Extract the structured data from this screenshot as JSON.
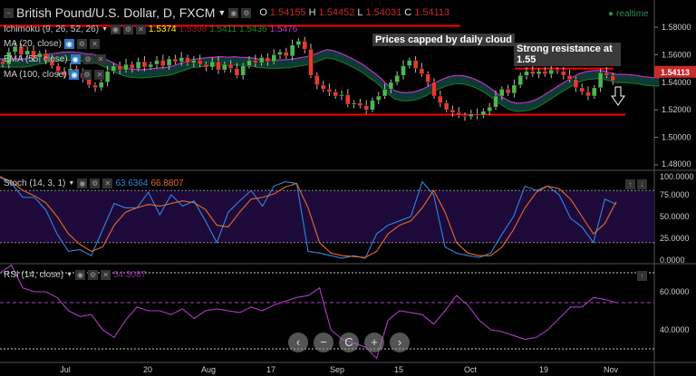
{
  "header": {
    "title": "British Pound/U.S. Dollar, D, FXCM",
    "o_label": "O",
    "o": "1.54155",
    "h_label": "H",
    "h": "1.54452",
    "l_label": "L",
    "l": "1.54031",
    "c_label": "C",
    "c": "1.54113",
    "realtime": "realtime"
  },
  "legend": {
    "ichimoku": "Ichimoku (9, 26, 52, 26)",
    "ichi_vals": [
      "1.5374",
      "1.5308",
      "1.5411",
      "1.5436",
      "1.5476"
    ],
    "ma20": "MA (20, close)",
    "ema55": "EMA (55, close)",
    "ma100": "MA (100, close)",
    "stoch": "Stoch (14, 3, 1)",
    "stoch_k": "63.6364",
    "stoch_d": "66.8807",
    "rsi": "RSI (14, close)",
    "rsi_val": "54.3087"
  },
  "annotations": {
    "cloud": "Prices capped by daily cloud",
    "resistance": "Strong resistance at 1.55"
  },
  "colors": {
    "up": "#4cb84c",
    "down": "#e8392b",
    "cloud": "#0d3b34",
    "stoch_k": "#2f86e0",
    "stoch_d": "#e8692b",
    "rsi": "#b03ac8",
    "level": "#ff0000"
  },
  "nav": [
    "‹",
    "−",
    "C",
    "+",
    "›"
  ],
  "chart_data": [
    {
      "type": "candlestick",
      "series": "GBP/USD daily",
      "x_ticks": [
        "Jul",
        "20",
        "Aug",
        "17",
        "Sep",
        "15",
        "Oct",
        "19",
        "Nov"
      ],
      "y_ticks": [
        "1.58000",
        "1.56000",
        "1.54000",
        "1.52000",
        "1.50000",
        "1.48000"
      ],
      "ylim": [
        1.475,
        1.585
      ],
      "last_price": "1.54113",
      "closes": [
        1.553,
        1.562,
        1.566,
        1.56,
        1.563,
        1.558,
        1.561,
        1.556,
        1.552,
        1.548,
        1.545,
        1.55,
        1.547,
        1.543,
        1.538,
        1.536,
        1.54,
        1.548,
        1.552,
        1.549,
        1.553,
        1.55,
        1.555,
        1.551,
        1.553,
        1.556,
        1.552,
        1.557,
        1.555,
        1.558,
        1.554,
        1.556,
        1.553,
        1.551,
        1.555,
        1.549,
        1.553,
        1.55,
        1.545,
        1.552,
        1.556,
        1.554,
        1.558,
        1.555,
        1.56,
        1.562,
        1.559,
        1.567,
        1.57,
        1.564,
        1.545,
        1.538,
        1.535,
        1.533,
        1.53,
        1.531,
        1.524,
        1.525,
        1.523,
        1.52,
        1.527,
        1.53,
        1.535,
        1.54,
        1.545,
        1.552,
        1.556,
        1.55,
        1.546,
        1.54,
        1.53,
        1.525,
        1.52,
        1.518,
        1.516,
        1.515,
        1.517,
        1.516,
        1.519,
        1.522,
        1.53,
        1.535,
        1.532,
        1.538,
        1.545,
        1.548,
        1.546,
        1.548,
        1.546,
        1.549,
        1.548,
        1.545,
        1.542,
        1.536,
        1.533,
        1.53,
        1.536,
        1.547,
        1.545,
        1.541
      ],
      "levels": [
        1.581,
        1.5165,
        1.55
      ]
    },
    {
      "type": "line",
      "series": [
        "%K",
        "%D"
      ],
      "ylim": [
        0,
        100
      ],
      "y_ticks": [
        "100.0000",
        "75.0000",
        "50.0000",
        "25.0000",
        "0.0000"
      ],
      "bands": [
        20,
        80
      ],
      "k": [
        95,
        88,
        72,
        72,
        58,
        30,
        10,
        12,
        5,
        35,
        65,
        60,
        60,
        78,
        52,
        75,
        62,
        68,
        45,
        20,
        55,
        68,
        80,
        62,
        85,
        90,
        88,
        10,
        8,
        5,
        2,
        5,
        2,
        30,
        40,
        45,
        50,
        90,
        75,
        15,
        8,
        5,
        3,
        8,
        30,
        50,
        85,
        80,
        85,
        75,
        48,
        38,
        20,
        70,
        64
      ],
      "d": [
        96,
        90,
        80,
        74,
        66,
        50,
        30,
        18,
        10,
        15,
        40,
        55,
        60,
        64,
        62,
        65,
        68,
        66,
        58,
        40,
        38,
        55,
        70,
        72,
        76,
        84,
        88,
        60,
        20,
        8,
        5,
        4,
        3,
        10,
        30,
        40,
        45,
        60,
        80,
        55,
        20,
        8,
        5,
        5,
        15,
        35,
        60,
        78,
        85,
        82,
        70,
        50,
        30,
        42,
        67
      ]
    },
    {
      "type": "line",
      "series": "RSI",
      "ylim": [
        20,
        80
      ],
      "y_ticks": [
        "60.0000",
        "40.0000"
      ],
      "bands": [
        30,
        70
      ],
      "last": 54.3087,
      "values": [
        70,
        74,
        62,
        60,
        60,
        57,
        50,
        47,
        48,
        40,
        36,
        45,
        52,
        50,
        50,
        48,
        51,
        46,
        50,
        51,
        50,
        49,
        52,
        50,
        53,
        55,
        57,
        58,
        62,
        40,
        35,
        33,
        31,
        25,
        45,
        50,
        49,
        48,
        43,
        50,
        58,
        53,
        45,
        40,
        39,
        37,
        35,
        36,
        40,
        46,
        52,
        52,
        57,
        56,
        54.3
      ]
    }
  ]
}
